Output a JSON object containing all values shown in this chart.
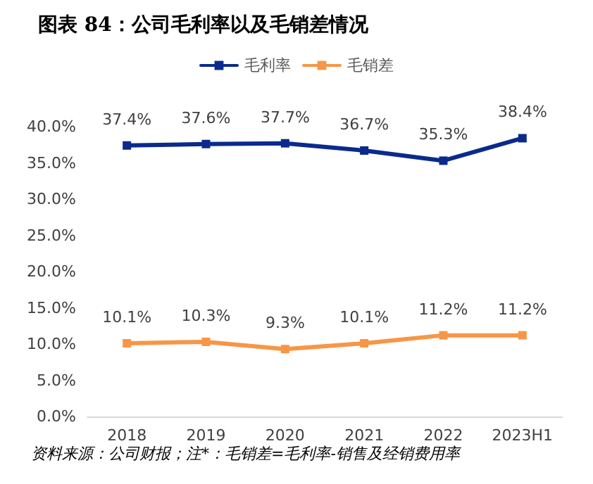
{
  "chart_data": {
    "type": "line",
    "title": "图表 84：公司毛利率以及毛销差情况",
    "categories": [
      "2018",
      "2019",
      "2020",
      "2021",
      "2022",
      "2023H1"
    ],
    "series": [
      {
        "name": "毛利率",
        "color": "#0a2a8c",
        "values": [
          37.4,
          37.6,
          37.7,
          36.7,
          35.3,
          38.4
        ],
        "value_labels": [
          "37.4%",
          "37.6%",
          "37.7%",
          "36.7%",
          "35.3%",
          "38.4%"
        ]
      },
      {
        "name": "毛销差",
        "color": "#f79646",
        "values": [
          10.1,
          10.3,
          9.3,
          10.1,
          11.2,
          11.2
        ],
        "value_labels": [
          "10.1%",
          "10.3%",
          "9.3%",
          "10.1%",
          "11.2%",
          "11.2%"
        ]
      }
    ],
    "ylim": [
      0,
      40
    ],
    "yticks": [
      {
        "value": 0,
        "label": "0.0%"
      },
      {
        "value": 5,
        "label": "5.0%"
      },
      {
        "value": 10,
        "label": "10.0%"
      },
      {
        "value": 15,
        "label": "15.0%"
      },
      {
        "value": 20,
        "label": "20.0%"
      },
      {
        "value": 25,
        "label": "25.0%"
      },
      {
        "value": 30,
        "label": "30.0%"
      },
      {
        "value": 35,
        "label": "35.0%"
      },
      {
        "value": 40,
        "label": "40.0%"
      }
    ],
    "grid": false,
    "legend": "top",
    "marker": "square",
    "line_style": "solid",
    "annotations": [
      "资料来源：公司财报；注*：毛销差=毛利率-销售及经销费用率"
    ]
  }
}
